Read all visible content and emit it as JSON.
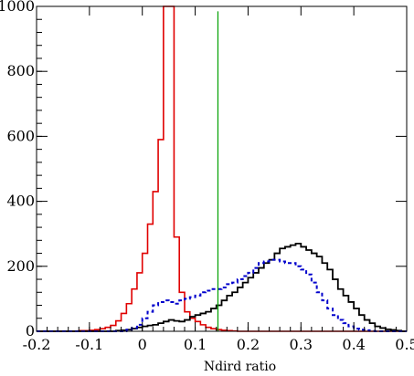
{
  "chart_data": {
    "type": "histogram",
    "title": "",
    "xlabel": "Ndird ratio",
    "ylabel": "",
    "xlim": [
      -0.2,
      0.5
    ],
    "ylim": [
      0,
      1000
    ],
    "x_ticks": [
      "-0.2",
      "-0.1",
      "0",
      "0.1",
      "0.2",
      "0.3",
      "0.4",
      "0.5"
    ],
    "y_ticks": [
      "0",
      "200",
      "400",
      "600",
      "800",
      "1000"
    ],
    "grid": false,
    "legend": "none",
    "bin_width": 0.01,
    "bin_start": -0.2,
    "cut_line": {
      "x": 0.143,
      "color": "#00a000"
    },
    "series": [
      {
        "color": "#e00000",
        "line_style": "solid",
        "values": [
          0,
          0,
          0,
          0,
          0,
          0,
          0,
          0,
          2,
          2,
          3,
          5,
          8,
          12,
          18,
          32,
          55,
          85,
          130,
          180,
          240,
          330,
          430,
          590,
          1000,
          1000,
          290,
          120,
          60,
          40,
          30,
          20,
          12,
          8,
          5,
          3,
          2,
          1,
          0,
          0,
          0,
          0,
          0,
          0,
          0,
          0,
          0,
          0,
          0,
          0,
          0,
          0,
          0,
          0,
          0,
          0,
          0,
          0,
          0,
          0,
          0,
          0,
          0,
          0,
          0,
          0,
          0,
          0,
          0,
          0
        ]
      },
      {
        "color": "#000000",
        "line_style": "solid",
        "values": [
          0,
          0,
          0,
          0,
          0,
          0,
          0,
          0,
          0,
          0,
          0,
          0,
          0,
          0,
          0,
          2,
          3,
          5,
          8,
          12,
          15,
          18,
          20,
          25,
          30,
          35,
          32,
          30,
          35,
          45,
          50,
          55,
          60,
          70,
          80,
          95,
          110,
          120,
          135,
          150,
          165,
          180,
          195,
          210,
          220,
          240,
          255,
          260,
          265,
          270,
          260,
          250,
          240,
          230,
          210,
          190,
          160,
          130,
          110,
          90,
          70,
          50,
          35,
          25,
          15,
          10,
          6,
          4,
          2,
          0
        ]
      },
      {
        "color": "#0000cc",
        "line_style": "dashed",
        "values": [
          0,
          0,
          0,
          0,
          0,
          0,
          0,
          0,
          0,
          0,
          0,
          0,
          0,
          0,
          0,
          0,
          0,
          5,
          10,
          20,
          40,
          60,
          80,
          90,
          95,
          90,
          85,
          95,
          100,
          105,
          110,
          120,
          125,
          130,
          130,
          135,
          145,
          150,
          160,
          170,
          180,
          195,
          210,
          215,
          220,
          220,
          215,
          210,
          210,
          200,
          190,
          175,
          150,
          120,
          95,
          70,
          50,
          35,
          25,
          15,
          8,
          5,
          3,
          1,
          0,
          0,
          0,
          0,
          0,
          0
        ]
      }
    ]
  }
}
